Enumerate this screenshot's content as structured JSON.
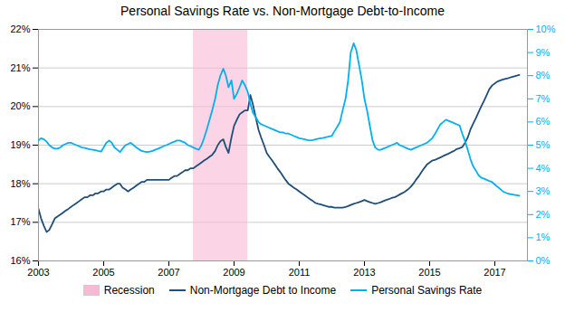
{
  "chart_data": {
    "type": "line",
    "title": "Personal Savings Rate vs. Non-Mortgage Debt-to-Income",
    "xlim": [
      2003,
      2018.0
    ],
    "xticks": [
      2003,
      2005,
      2007,
      2009,
      2011,
      2013,
      2015,
      2017
    ],
    "ylim": [
      16,
      22
    ],
    "yticks": [
      {
        "value": 16,
        "label": "16%"
      },
      {
        "value": 17,
        "label": "17%"
      },
      {
        "value": 18,
        "label": "18%"
      },
      {
        "value": 19,
        "label": "19%"
      },
      {
        "value": 20,
        "label": "20%"
      },
      {
        "value": 21,
        "label": "21%"
      },
      {
        "value": 22,
        "label": "22%"
      }
    ],
    "y2lim": [
      0,
      10
    ],
    "y2ticks": [
      {
        "value": 0,
        "label": "0%"
      },
      {
        "value": 1,
        "label": "1%"
      },
      {
        "value": 2,
        "label": "2%"
      },
      {
        "value": 3,
        "label": "3%"
      },
      {
        "value": 4,
        "label": "4%"
      },
      {
        "value": 5,
        "label": "5%"
      },
      {
        "value": 6,
        "label": "6%"
      },
      {
        "value": 7,
        "label": "7%"
      },
      {
        "value": 8,
        "label": "8%"
      },
      {
        "value": 9,
        "label": "9%"
      },
      {
        "value": 10,
        "label": "10%"
      }
    ],
    "grid": true,
    "legend": "bottom",
    "shaded_ranges": [
      {
        "name": "Recession",
        "x0": 2007.75,
        "x1": 2009.42,
        "color": "#F9B8D4"
      }
    ],
    "x": [
      2003.0,
      2003.08,
      2003.17,
      2003.25,
      2003.33,
      2003.42,
      2003.5,
      2003.58,
      2003.67,
      2003.75,
      2003.83,
      2003.92,
      2004.0,
      2004.08,
      2004.17,
      2004.25,
      2004.33,
      2004.42,
      2004.5,
      2004.58,
      2004.67,
      2004.75,
      2004.83,
      2004.92,
      2005.0,
      2005.08,
      2005.17,
      2005.25,
      2005.33,
      2005.42,
      2005.5,
      2005.58,
      2005.67,
      2005.75,
      2005.83,
      2005.92,
      2006.0,
      2006.08,
      2006.17,
      2006.25,
      2006.33,
      2006.42,
      2006.5,
      2006.58,
      2006.67,
      2006.75,
      2006.83,
      2006.92,
      2007.0,
      2007.08,
      2007.17,
      2007.25,
      2007.33,
      2007.42,
      2007.5,
      2007.58,
      2007.67,
      2007.75,
      2007.83,
      2007.92,
      2008.0,
      2008.08,
      2008.17,
      2008.25,
      2008.33,
      2008.42,
      2008.5,
      2008.58,
      2008.67,
      2008.75,
      2008.83,
      2008.92,
      2009.0,
      2009.08,
      2009.17,
      2009.25,
      2009.33,
      2009.42,
      2009.5,
      2009.58,
      2009.67,
      2009.75,
      2009.83,
      2009.92,
      2010.0,
      2010.08,
      2010.17,
      2010.25,
      2010.33,
      2010.42,
      2010.5,
      2010.58,
      2010.67,
      2010.75,
      2010.83,
      2010.92,
      2011.0,
      2011.08,
      2011.17,
      2011.25,
      2011.33,
      2011.42,
      2011.5,
      2011.58,
      2011.67,
      2011.75,
      2011.83,
      2011.92,
      2012.0,
      2012.08,
      2012.17,
      2012.25,
      2012.33,
      2012.42,
      2012.5,
      2012.58,
      2012.67,
      2012.75,
      2012.83,
      2012.92,
      2013.0,
      2013.08,
      2013.17,
      2013.25,
      2013.33,
      2013.42,
      2013.5,
      2013.58,
      2013.67,
      2013.75,
      2013.83,
      2013.92,
      2014.0,
      2014.08,
      2014.17,
      2014.25,
      2014.33,
      2014.42,
      2014.5,
      2014.58,
      2014.67,
      2014.75,
      2014.83,
      2014.92,
      2015.0,
      2015.08,
      2015.17,
      2015.25,
      2015.33,
      2015.42,
      2015.5,
      2015.58,
      2015.67,
      2015.75,
      2015.83,
      2015.92,
      2016.0,
      2016.08,
      2016.17,
      2016.25,
      2016.33,
      2016.42,
      2016.5,
      2016.58,
      2016.67,
      2016.75,
      2016.83,
      2016.92,
      2017.0,
      2017.08,
      2017.17,
      2017.25,
      2017.33,
      2017.42,
      2017.5,
      2017.58,
      2017.67,
      2017.75
    ],
    "series": [
      {
        "name": "Non-Mortgage Debt to Income",
        "color": "#1F4E79",
        "values": [
          17.35,
          17.1,
          16.9,
          16.75,
          16.8,
          16.95,
          17.1,
          17.15,
          17.2,
          17.25,
          17.3,
          17.35,
          17.4,
          17.45,
          17.5,
          17.55,
          17.6,
          17.65,
          17.65,
          17.7,
          17.7,
          17.75,
          17.75,
          17.8,
          17.8,
          17.85,
          17.85,
          17.9,
          17.95,
          18.0,
          18.0,
          17.9,
          17.85,
          17.8,
          17.85,
          17.9,
          17.95,
          18.0,
          18.05,
          18.05,
          18.1,
          18.1,
          18.1,
          18.1,
          18.1,
          18.1,
          18.1,
          18.1,
          18.1,
          18.15,
          18.2,
          18.2,
          18.25,
          18.3,
          18.35,
          18.35,
          18.4,
          18.4,
          18.45,
          18.5,
          18.55,
          18.6,
          18.65,
          18.7,
          18.75,
          18.85,
          19.0,
          19.1,
          19.15,
          18.95,
          18.8,
          19.2,
          19.5,
          19.65,
          19.8,
          19.85,
          19.9,
          19.9,
          20.3,
          20.05,
          19.7,
          19.4,
          19.2,
          19.0,
          18.8,
          18.7,
          18.6,
          18.5,
          18.4,
          18.3,
          18.2,
          18.1,
          18.0,
          17.95,
          17.9,
          17.85,
          17.8,
          17.75,
          17.7,
          17.65,
          17.6,
          17.55,
          17.5,
          17.48,
          17.46,
          17.44,
          17.42,
          17.4,
          17.4,
          17.38,
          17.38,
          17.38,
          17.38,
          17.4,
          17.42,
          17.45,
          17.48,
          17.5,
          17.52,
          17.55,
          17.58,
          17.55,
          17.52,
          17.5,
          17.48,
          17.5,
          17.52,
          17.55,
          17.58,
          17.6,
          17.63,
          17.65,
          17.68,
          17.72,
          17.76,
          17.8,
          17.85,
          17.92,
          18.0,
          18.1,
          18.2,
          18.3,
          18.4,
          18.5,
          18.55,
          18.6,
          18.62,
          18.65,
          18.68,
          18.72,
          18.75,
          18.78,
          18.82,
          18.85,
          18.9,
          18.92,
          18.95,
          19.05,
          19.2,
          19.4,
          19.55,
          19.7,
          19.85,
          20.0,
          20.15,
          20.3,
          20.45,
          20.55,
          20.6,
          20.65,
          20.68,
          20.7,
          20.72,
          20.74,
          20.76,
          20.78,
          20.8,
          20.82
        ]
      },
      {
        "name": "Personal Savings Rate",
        "color": "#00B0F0",
        "axis": "y2",
        "values": [
          5.2,
          5.3,
          5.25,
          5.15,
          5.0,
          4.9,
          4.85,
          4.85,
          4.9,
          5.0,
          5.05,
          5.1,
          5.1,
          5.05,
          5.0,
          4.95,
          4.9,
          4.88,
          4.85,
          4.82,
          4.8,
          4.78,
          4.75,
          4.72,
          4.9,
          5.1,
          5.2,
          5.1,
          4.9,
          4.8,
          4.7,
          4.85,
          5.0,
          5.05,
          5.1,
          5.0,
          4.9,
          4.82,
          4.75,
          4.72,
          4.7,
          4.72,
          4.75,
          4.8,
          4.85,
          4.9,
          4.95,
          5.0,
          5.05,
          5.1,
          5.15,
          5.2,
          5.2,
          5.15,
          5.1,
          5.0,
          4.95,
          4.9,
          4.85,
          4.8,
          5.0,
          5.3,
          5.7,
          6.1,
          6.5,
          7.0,
          7.6,
          8.0,
          8.3,
          8.0,
          7.5,
          7.8,
          7.0,
          7.2,
          7.5,
          7.8,
          7.6,
          7.3,
          6.8,
          6.4,
          6.2,
          6.0,
          5.9,
          5.85,
          5.8,
          5.75,
          5.7,
          5.65,
          5.6,
          5.55,
          5.55,
          5.5,
          5.5,
          5.45,
          5.4,
          5.35,
          5.3,
          5.28,
          5.25,
          5.22,
          5.2,
          5.22,
          5.25,
          5.28,
          5.3,
          5.32,
          5.35,
          5.38,
          5.4,
          5.6,
          5.8,
          6.0,
          6.5,
          7.0,
          7.8,
          9.0,
          9.4,
          9.1,
          8.5,
          7.8,
          7.0,
          6.5,
          5.8,
          5.2,
          4.9,
          4.8,
          4.8,
          4.85,
          4.9,
          4.95,
          5.0,
          5.05,
          5.1,
          5.0,
          4.95,
          4.9,
          4.85,
          4.8,
          4.85,
          4.9,
          4.95,
          5.0,
          5.05,
          5.1,
          5.2,
          5.3,
          5.5,
          5.7,
          5.9,
          6.0,
          6.1,
          6.05,
          6.0,
          5.95,
          5.9,
          5.85,
          5.5,
          5.2,
          4.8,
          4.4,
          4.1,
          3.9,
          3.7,
          3.6,
          3.55,
          3.5,
          3.45,
          3.4,
          3.3,
          3.2,
          3.1,
          3.0,
          2.95,
          2.9,
          2.88,
          2.86,
          2.84,
          2.82
        ]
      }
    ]
  }
}
